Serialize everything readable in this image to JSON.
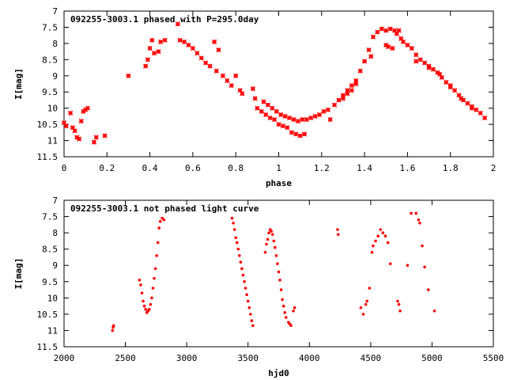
{
  "colors": {
    "points": "#ff0000",
    "axis": "#000000",
    "background": "#ffffff"
  },
  "chart_data": [
    {
      "type": "scatter",
      "title": "092255-3003.1 phased with P=295.0day",
      "xlabel": "phase",
      "ylabel": "I[mag]",
      "xlim": [
        0,
        2
      ],
      "ylim": [
        11.5,
        7
      ],
      "y_axis_inverted": true,
      "grid": false,
      "xticks": [
        "0",
        "0.2",
        "0.4",
        "0.6",
        "0.8",
        "1",
        "1.2",
        "1.4",
        "1.6",
        "1.8",
        "2"
      ],
      "yticks": [
        "7",
        "7.5",
        "8",
        "8.5",
        "9",
        "9.5",
        "10",
        "10.5",
        "11",
        "11.5"
      ],
      "series": [
        {
          "marker": "cross",
          "points": [
            [
              0.0,
              10.45
            ],
            [
              0.01,
              10.55
            ],
            [
              0.03,
              10.15
            ],
            [
              0.04,
              10.6
            ],
            [
              0.05,
              10.7
            ],
            [
              0.06,
              10.9
            ],
            [
              0.07,
              10.95
            ],
            [
              0.08,
              10.4
            ],
            [
              0.09,
              10.1
            ],
            [
              0.1,
              10.05
            ],
            [
              0.11,
              10.0
            ],
            [
              0.14,
              11.05
            ],
            [
              0.15,
              10.9
            ],
            [
              0.19,
              10.85
            ],
            [
              0.3,
              9.0
            ],
            [
              0.38,
              8.7
            ],
            [
              0.39,
              8.5
            ],
            [
              0.4,
              8.15
            ],
            [
              0.41,
              7.9
            ],
            [
              0.42,
              8.3
            ],
            [
              0.44,
              8.25
            ],
            [
              0.45,
              7.95
            ],
            [
              0.47,
              7.9
            ],
            [
              0.53,
              7.4
            ],
            [
              0.54,
              7.9
            ],
            [
              0.56,
              7.95
            ],
            [
              0.58,
              8.05
            ],
            [
              0.6,
              8.15
            ],
            [
              0.62,
              8.3
            ],
            [
              0.64,
              8.45
            ],
            [
              0.66,
              8.6
            ],
            [
              0.68,
              8.7
            ],
            [
              0.7,
              7.95
            ],
            [
              0.71,
              8.85
            ],
            [
              0.72,
              8.2
            ],
            [
              0.74,
              9.0
            ],
            [
              0.76,
              9.15
            ],
            [
              0.78,
              9.3
            ],
            [
              0.8,
              9.0
            ],
            [
              0.82,
              9.45
            ],
            [
              0.83,
              9.55
            ],
            [
              0.88,
              9.4
            ],
            [
              0.89,
              9.7
            ],
            [
              0.9,
              10.0
            ],
            [
              0.92,
              10.1
            ],
            [
              0.94,
              10.2
            ],
            [
              0.96,
              10.3
            ],
            [
              0.98,
              10.35
            ],
            [
              1.0,
              10.5
            ],
            [
              1.02,
              10.55
            ],
            [
              1.04,
              10.6
            ],
            [
              0.93,
              9.8
            ],
            [
              0.95,
              9.9
            ],
            [
              0.97,
              10.0
            ],
            [
              0.99,
              10.1
            ],
            [
              1.01,
              10.2
            ],
            [
              1.03,
              10.25
            ],
            [
              1.05,
              10.3
            ],
            [
              1.07,
              10.35
            ],
            [
              1.09,
              10.4
            ],
            [
              1.11,
              10.35
            ],
            [
              1.13,
              10.35
            ],
            [
              1.06,
              10.75
            ],
            [
              1.08,
              10.8
            ],
            [
              1.1,
              10.85
            ],
            [
              1.12,
              10.8
            ],
            [
              1.15,
              10.3
            ],
            [
              1.17,
              10.25
            ],
            [
              1.19,
              10.2
            ],
            [
              1.21,
              10.1
            ],
            [
              1.23,
              10.05
            ],
            [
              1.24,
              10.35
            ],
            [
              1.26,
              9.9
            ],
            [
              1.28,
              9.75
            ],
            [
              1.3,
              9.6
            ],
            [
              1.32,
              9.45
            ],
            [
              1.34,
              9.3
            ],
            [
              1.36,
              9.15
            ],
            [
              1.3,
              9.7
            ],
            [
              1.32,
              9.55
            ],
            [
              1.34,
              9.45
            ],
            [
              1.36,
              9.25
            ],
            [
              1.38,
              8.85
            ],
            [
              1.4,
              8.55
            ],
            [
              1.42,
              8.2
            ],
            [
              1.43,
              8.4
            ],
            [
              1.44,
              7.8
            ],
            [
              1.46,
              7.65
            ],
            [
              1.48,
              7.55
            ],
            [
              1.5,
              7.6
            ],
            [
              1.52,
              7.55
            ],
            [
              1.54,
              7.6
            ],
            [
              1.5,
              8.05
            ],
            [
              1.51,
              8.1
            ],
            [
              1.53,
              8.15
            ],
            [
              1.55,
              7.7
            ],
            [
              1.56,
              7.6
            ],
            [
              1.57,
              7.85
            ],
            [
              1.58,
              7.95
            ],
            [
              1.6,
              8.05
            ],
            [
              1.62,
              8.15
            ],
            [
              1.64,
              8.35
            ],
            [
              1.66,
              8.5
            ],
            [
              1.68,
              8.6
            ],
            [
              1.7,
              8.7
            ],
            [
              1.72,
              8.8
            ],
            [
              1.74,
              8.9
            ],
            [
              1.76,
              9.05
            ],
            [
              1.78,
              9.2
            ],
            [
              1.8,
              9.3
            ],
            [
              1.82,
              9.45
            ],
            [
              1.84,
              9.6
            ],
            [
              1.86,
              9.75
            ],
            [
              1.88,
              9.85
            ],
            [
              1.9,
              9.95
            ],
            [
              1.92,
              10.05
            ],
            [
              1.94,
              10.15
            ],
            [
              1.96,
              10.3
            ],
            [
              1.64,
              8.55
            ],
            [
              1.7,
              8.75
            ],
            [
              1.75,
              8.95
            ],
            [
              1.8,
              9.35
            ],
            [
              1.85,
              9.7
            ],
            [
              1.9,
              10.0
            ]
          ]
        }
      ]
    },
    {
      "type": "scatter",
      "title": "092255-3003.1 not phased light curve",
      "xlabel": "hjd0",
      "ylabel": "I[mag]",
      "xlim": [
        2000,
        5500
      ],
      "ylim": [
        11.5,
        7
      ],
      "y_axis_inverted": true,
      "grid": false,
      "xticks": [
        "2000",
        "2500",
        "3000",
        "3500",
        "4000",
        "4500",
        "5000",
        "5500"
      ],
      "yticks": [
        "7",
        "7.5",
        "8",
        "8.5",
        "9",
        "9.5",
        "10",
        "10.5",
        "11",
        "11.5"
      ],
      "series": [
        {
          "marker": "dot",
          "points": [
            [
              2395,
              11.0
            ],
            [
              2400,
              10.9
            ],
            [
              2405,
              10.85
            ],
            [
              2615,
              9.45
            ],
            [
              2625,
              9.6
            ],
            [
              2635,
              9.85
            ],
            [
              2645,
              10.1
            ],
            [
              2655,
              10.25
            ],
            [
              2665,
              10.35
            ],
            [
              2675,
              10.45
            ],
            [
              2685,
              10.4
            ],
            [
              2695,
              10.35
            ],
            [
              2705,
              10.2
            ],
            [
              2715,
              10.0
            ],
            [
              2725,
              9.7
            ],
            [
              2735,
              9.4
            ],
            [
              2745,
              9.1
            ],
            [
              2755,
              8.7
            ],
            [
              2765,
              8.3
            ],
            [
              2775,
              7.85
            ],
            [
              2785,
              7.65
            ],
            [
              2800,
              7.55
            ],
            [
              2815,
              7.6
            ],
            [
              3370,
              7.55
            ],
            [
              3380,
              7.7
            ],
            [
              3390,
              7.9
            ],
            [
              3400,
              8.15
            ],
            [
              3410,
              8.3
            ],
            [
              3420,
              8.5
            ],
            [
              3430,
              8.7
            ],
            [
              3440,
              8.9
            ],
            [
              3450,
              9.1
            ],
            [
              3460,
              9.3
            ],
            [
              3470,
              9.5
            ],
            [
              3480,
              9.7
            ],
            [
              3490,
              9.9
            ],
            [
              3500,
              10.1
            ],
            [
              3510,
              10.3
            ],
            [
              3520,
              10.5
            ],
            [
              3530,
              10.7
            ],
            [
              3540,
              10.85
            ],
            [
              3640,
              8.6
            ],
            [
              3650,
              8.35
            ],
            [
              3660,
              8.2
            ],
            [
              3670,
              8.0
            ],
            [
              3680,
              7.9
            ],
            [
              3690,
              7.95
            ],
            [
              3700,
              8.05
            ],
            [
              3710,
              8.25
            ],
            [
              3720,
              8.45
            ],
            [
              3730,
              8.7
            ],
            [
              3740,
              8.95
            ],
            [
              3750,
              9.2
            ],
            [
              3760,
              9.45
            ],
            [
              3770,
              9.75
            ],
            [
              3780,
              10.05
            ],
            [
              3790,
              10.25
            ],
            [
              3800,
              10.45
            ],
            [
              3810,
              10.6
            ],
            [
              3830,
              10.75
            ],
            [
              3840,
              10.8
            ],
            [
              3850,
              10.85
            ],
            [
              3870,
              10.4
            ],
            [
              3880,
              10.3
            ],
            [
              4230,
              7.9
            ],
            [
              4235,
              8.05
            ],
            [
              4420,
              10.3
            ],
            [
              4440,
              10.5
            ],
            [
              4460,
              10.2
            ],
            [
              4470,
              10.1
            ],
            [
              4490,
              9.7
            ],
            [
              4510,
              8.6
            ],
            [
              4520,
              8.4
            ],
            [
              4540,
              8.25
            ],
            [
              4560,
              8.1
            ],
            [
              4580,
              7.9
            ],
            [
              4600,
              8.0
            ],
            [
              4620,
              8.1
            ],
            [
              4640,
              8.3
            ],
            [
              4660,
              8.95
            ],
            [
              4720,
              10.1
            ],
            [
              4730,
              10.2
            ],
            [
              4740,
              10.4
            ],
            [
              4800,
              9.0
            ],
            [
              4830,
              7.4
            ],
            [
              4870,
              7.4
            ],
            [
              4890,
              7.6
            ],
            [
              4900,
              7.7
            ],
            [
              4920,
              8.4
            ],
            [
              4940,
              9.05
            ],
            [
              4970,
              9.75
            ],
            [
              5020,
              10.4
            ]
          ]
        }
      ]
    }
  ]
}
